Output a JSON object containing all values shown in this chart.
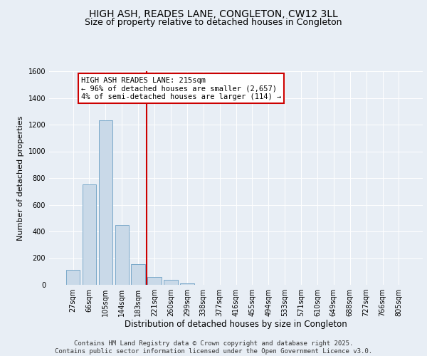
{
  "title": "HIGH ASH, READES LANE, CONGLETON, CW12 3LL",
  "subtitle": "Size of property relative to detached houses in Congleton",
  "xlabel": "Distribution of detached houses by size in Congleton",
  "ylabel": "Number of detached properties",
  "categories": [
    "27sqm",
    "66sqm",
    "105sqm",
    "144sqm",
    "183sqm",
    "221sqm",
    "260sqm",
    "299sqm",
    "338sqm",
    "377sqm",
    "416sqm",
    "455sqm",
    "494sqm",
    "533sqm",
    "571sqm",
    "610sqm",
    "649sqm",
    "688sqm",
    "727sqm",
    "766sqm",
    "805sqm"
  ],
  "values": [
    110,
    750,
    1230,
    450,
    155,
    60,
    35,
    10,
    0,
    0,
    0,
    0,
    0,
    0,
    0,
    0,
    0,
    0,
    0,
    0,
    0
  ],
  "bar_color": "#c9d9e8",
  "bar_edge_color": "#6a9ec4",
  "vline_color": "#cc0000",
  "annotation_text": "HIGH ASH READES LANE: 215sqm\n← 96% of detached houses are smaller (2,657)\n4% of semi-detached houses are larger (114) →",
  "annotation_box_color": "#cc0000",
  "ylim": [
    0,
    1600
  ],
  "yticks": [
    0,
    200,
    400,
    600,
    800,
    1000,
    1200,
    1400,
    1600
  ],
  "background_color": "#e8eef5",
  "plot_bg_color": "#e8eef5",
  "footer_text": "Contains HM Land Registry data © Crown copyright and database right 2025.\nContains public sector information licensed under the Open Government Licence v3.0.",
  "title_fontsize": 10,
  "subtitle_fontsize": 9,
  "xlabel_fontsize": 8.5,
  "ylabel_fontsize": 8,
  "tick_fontsize": 7,
  "annotation_fontsize": 7.5,
  "footer_fontsize": 6.5
}
